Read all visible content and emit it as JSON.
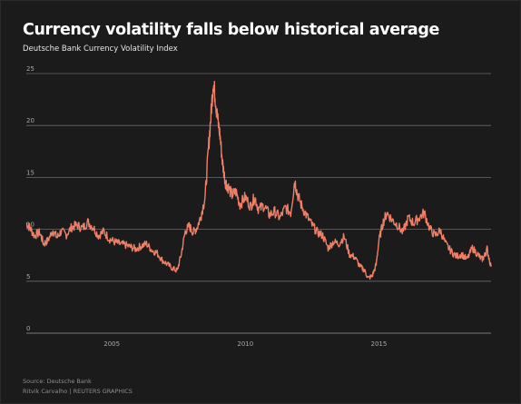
{
  "chart_data": {
    "type": "line",
    "title": "Currency volatility falls below historical average",
    "subtitle": "Deutsche Bank Currency Volatility Index",
    "xlabel": "",
    "ylabel": "",
    "xlim": [
      2001.8,
      2019.2
    ],
    "ylim": [
      0,
      25
    ],
    "x_ticks": [
      2005,
      2010,
      2015
    ],
    "x_tick_labels": [
      "2005",
      "2010",
      "2015"
    ],
    "y_ticks": [
      0,
      5,
      10,
      15,
      20,
      25
    ],
    "y_tick_labels": [
      "0",
      "5",
      "10",
      "15",
      "20",
      "25"
    ],
    "grid": "horizontal",
    "legend": "none",
    "line_color": "#f07f68",
    "series": [
      {
        "x": [
          2001.8,
          2001.95,
          2002.1,
          2002.3,
          2002.45,
          2002.6,
          2002.8,
          2002.95,
          2003.1,
          2003.3,
          2003.5,
          2003.7,
          2003.9,
          2004.1,
          2004.3,
          2004.5,
          2004.7,
          2004.9,
          2005.1,
          2005.3,
          2005.5,
          2005.7,
          2005.9,
          2006.1,
          2006.3,
          2006.5,
          2006.7,
          2006.9,
          2007.1,
          2007.3,
          2007.45,
          2007.6,
          2007.75,
          2007.9,
          2008.05,
          2008.2,
          2008.35,
          2008.5,
          2008.62,
          2008.72,
          2008.8,
          2008.88,
          2008.95,
          2009.05,
          2009.15,
          2009.25,
          2009.35,
          2009.5,
          2009.65,
          2009.8,
          2010.0,
          2010.2,
          2010.35,
          2010.5,
          2010.7,
          2010.9,
          2011.1,
          2011.3,
          2011.5,
          2011.7,
          2011.85,
          2011.95,
          2012.1,
          2012.3,
          2012.5,
          2012.7,
          2012.9,
          2013.1,
          2013.3,
          2013.5,
          2013.7,
          2013.9,
          2014.1,
          2014.3,
          2014.45,
          2014.6,
          2014.75,
          2014.9,
          2015.0,
          2015.15,
          2015.3,
          2015.5,
          2015.7,
          2015.9,
          2016.1,
          2016.3,
          2016.5,
          2016.7,
          2016.9,
          2017.1,
          2017.3,
          2017.5,
          2017.7,
          2017.9,
          2018.1,
          2018.3,
          2018.5,
          2018.7,
          2018.85,
          2018.95,
          2019.05,
          2019.2
        ],
        "values": [
          10.6,
          10.1,
          9.4,
          9.7,
          8.6,
          8.9,
          9.9,
          9.2,
          9.8,
          9.5,
          10.2,
          10.4,
          10.1,
          10.7,
          10.2,
          9.4,
          9.8,
          9.1,
          8.8,
          8.6,
          8.5,
          8.3,
          8.1,
          8.4,
          8.6,
          8.0,
          7.7,
          7.0,
          6.6,
          6.2,
          6.0,
          7.6,
          9.8,
          10.3,
          9.7,
          10.2,
          11.4,
          13.2,
          17.8,
          21.2,
          24.2,
          22.6,
          20.8,
          19.1,
          16.3,
          14.6,
          14.1,
          13.3,
          13.6,
          12.4,
          13.1,
          12.2,
          13.1,
          11.9,
          12.3,
          11.4,
          11.7,
          11.1,
          12.1,
          11.6,
          14.7,
          13.4,
          12.3,
          11.3,
          10.4,
          9.7,
          9.4,
          8.2,
          8.8,
          8.6,
          9.3,
          7.6,
          7.3,
          6.4,
          6.1,
          5.3,
          5.5,
          6.6,
          8.9,
          10.6,
          11.6,
          10.9,
          10.4,
          9.7,
          11.1,
          10.6,
          11.1,
          11.6,
          10.1,
          9.4,
          9.9,
          8.6,
          7.9,
          7.4,
          7.6,
          7.1,
          8.2,
          7.6,
          7.1,
          7.4,
          8.1,
          6.4
        ]
      }
    ],
    "source": "Source: Deutsche Bank",
    "credit": "Ritvik Carvalho   |  REUTERS GRAPHICS"
  }
}
